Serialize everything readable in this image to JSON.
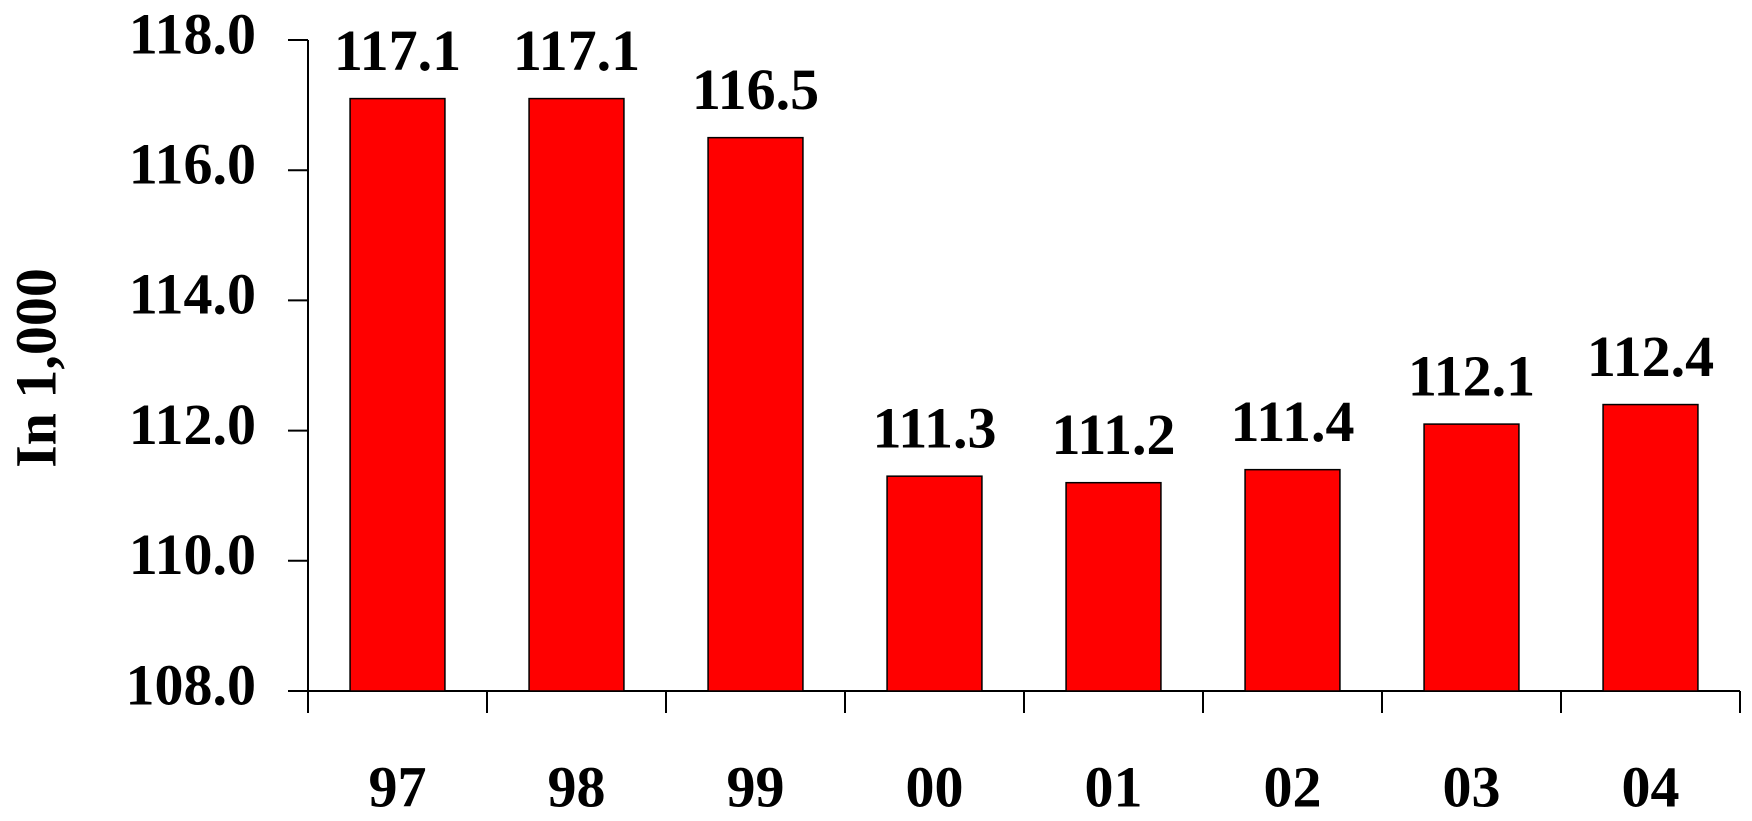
{
  "chart_data": {
    "type": "bar",
    "y_label": "In 1,000",
    "categories": [
      "97",
      "98",
      "99",
      "00",
      "01",
      "02",
      "03",
      "04"
    ],
    "values": [
      117.1,
      117.1,
      116.5,
      111.3,
      111.2,
      111.4,
      112.1,
      112.4
    ],
    "color": "#ff0000",
    "ylim": [
      108,
      118
    ],
    "yticks": [
      {
        "value": 108,
        "label": "108.0"
      },
      {
        "value": 110,
        "label": "110.0"
      },
      {
        "value": 112,
        "label": "112.0"
      },
      {
        "value": 114,
        "label": "114.0"
      },
      {
        "value": 116,
        "label": "116.0"
      },
      {
        "value": 118,
        "label": "118.0"
      }
    ],
    "grid": false
  }
}
